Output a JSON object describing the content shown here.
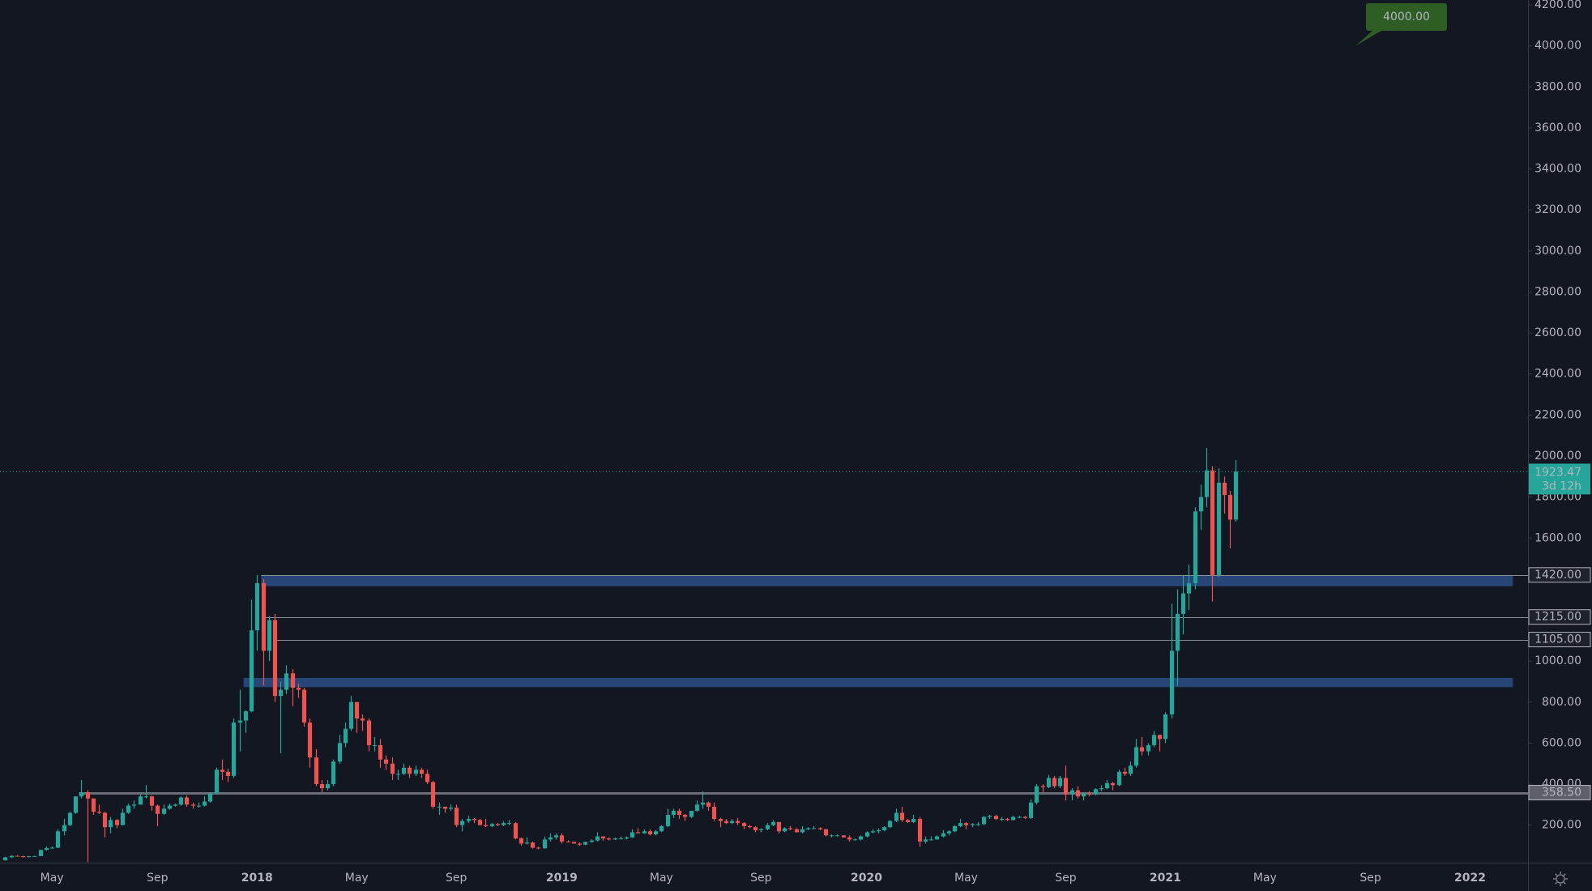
{
  "chart_data": {
    "type": "candlestick",
    "up_color": "#26a69a",
    "down_color": "#ef5350",
    "categories": [
      null,
      null,
      null,
      null,
      null,
      null,
      null,
      null,
      "May",
      null,
      null,
      null,
      null,
      null,
      null,
      null,
      null,
      null,
      null,
      null,
      null,
      null,
      null,
      null,
      null,
      null,
      "Sep",
      null,
      null,
      null,
      null,
      null,
      null,
      null,
      null,
      null,
      null,
      null,
      null,
      null,
      null,
      null,
      null,
      "2018",
      null,
      null,
      null,
      null,
      null,
      null,
      null,
      null,
      null,
      null,
      null,
      null,
      null,
      null,
      null,
      null,
      "May",
      null,
      null,
      null,
      null,
      null,
      null,
      null,
      null,
      null,
      null,
      null,
      null,
      null,
      null,
      null,
      null,
      "Sep",
      null,
      null,
      null,
      null,
      null,
      null,
      null,
      null,
      null,
      null,
      null,
      null,
      null,
      null,
      null,
      null,
      null,
      "2019",
      null,
      null,
      null,
      null,
      null,
      null,
      null,
      null,
      null,
      null,
      null,
      null,
      null,
      null,
      null,
      null,
      "May",
      null,
      null,
      null,
      null,
      null,
      null,
      null,
      null,
      null,
      null,
      null,
      null,
      null,
      null,
      null,
      null,
      "Sep",
      null,
      null,
      null,
      null,
      null,
      null,
      null,
      null,
      null,
      null,
      null,
      null,
      null,
      null,
      null,
      null,
      null,
      "2020",
      null,
      null,
      null,
      null,
      null,
      null,
      null,
      null,
      null,
      null,
      null,
      null,
      null,
      null,
      null,
      null,
      "May",
      null,
      null,
      null,
      null,
      null,
      null,
      null,
      null,
      null,
      null,
      null,
      null,
      null,
      null,
      null,
      null,
      "Sep",
      null,
      null,
      null,
      null,
      null,
      null,
      null,
      null,
      null,
      null,
      null,
      null,
      null,
      null,
      null,
      null,
      "2021",
      null,
      null,
      null,
      null,
      null,
      null,
      null,
      null,
      null,
      null,
      null,
      null,
      null,
      null,
      null,
      null,
      "May",
      null,
      null,
      null,
      null,
      null,
      null,
      null,
      null,
      null,
      null,
      null,
      null,
      null,
      null,
      null,
      null,
      null,
      "Sep",
      null,
      null,
      null,
      null,
      null,
      null,
      null,
      null,
      null,
      null,
      null,
      null,
      null,
      null,
      null,
      null,
      "2022",
      null,
      null,
      null,
      null,
      null,
      null,
      null,
      null,
      null,
      null
    ],
    "open": [
      28,
      43,
      50,
      48,
      44,
      48,
      49,
      79,
      88,
      90,
      170,
      200,
      260,
      340,
      360,
      330,
      265,
      260,
      190,
      225,
      200,
      260,
      295,
      300,
      340,
      340,
      295,
      255,
      280,
      295,
      300,
      335,
      300,
      295,
      295,
      315,
      355,
      470,
      460,
      440,
      700,
      710,
      755,
      1150,
      1380,
      1050,
      1200,
      830,
      860,
      940,
      870,
      860,
      700,
      530,
      400,
      380,
      400,
      510,
      600,
      670,
      800,
      720,
      710,
      590,
      590,
      520,
      500,
      450,
      450,
      480,
      450,
      470,
      450,
      410,
      290,
      290,
      280,
      285,
      200,
      220,
      230,
      225,
      200,
      195,
      205,
      200,
      210,
      210,
      135,
      110,
      115,
      90,
      87,
      130,
      140,
      150,
      120,
      118,
      110,
      105,
      118,
      125,
      145,
      135,
      130,
      135,
      135,
      140,
      165,
      160,
      170,
      155,
      170,
      195,
      250,
      270,
      250,
      240,
      270,
      300,
      310,
      290,
      230,
      220,
      210,
      220,
      210,
      195,
      190,
      175,
      180,
      200,
      215,
      170,
      185,
      180,
      165,
      180,
      185,
      185,
      180,
      150,
      150,
      150,
      140,
      130,
      130,
      145,
      165,
      170,
      175,
      190,
      220,
      260,
      225,
      215,
      230,
      120,
      130,
      130,
      145,
      160,
      170,
      195,
      210,
      200,
      205,
      205,
      240,
      245,
      230,
      230,
      225,
      240,
      240,
      235,
      310,
      390,
      385,
      430,
      390,
      430,
      350,
      370,
      340,
      355,
      350,
      375,
      380,
      405,
      395,
      460,
      450,
      490,
      580,
      560,
      590,
      640,
      620,
      740,
      1050,
      1230,
      1330,
      1380,
      1730,
      1800,
      1930,
      1420,
      1870,
      1810,
      1690,
      null,
      null,
      null,
      null,
      null,
      null,
      null,
      null,
      null,
      null,
      null,
      null,
      null,
      null,
      null,
      null,
      null,
      null,
      null,
      null,
      null,
      null,
      null,
      null,
      null,
      null,
      null,
      null,
      null,
      null,
      null,
      null,
      null,
      null,
      null,
      null,
      null,
      null,
      null,
      null,
      null,
      null,
      null,
      null,
      null,
      null,
      null,
      null,
      null,
      null
    ],
    "high": [
      45,
      53,
      53,
      51,
      50,
      50,
      80,
      97,
      96,
      180,
      230,
      265,
      340,
      420,
      370,
      330,
      300,
      265,
      240,
      230,
      280,
      305,
      320,
      350,
      395,
      345,
      300,
      300,
      305,
      305,
      340,
      345,
      310,
      310,
      340,
      360,
      480,
      520,
      475,
      720,
      860,
      760,
      1300,
      1420,
      1400,
      1220,
      1230,
      900,
      980,
      960,
      890,
      870,
      720,
      570,
      420,
      420,
      520,
      640,
      700,
      830,
      800,
      740,
      720,
      630,
      620,
      540,
      530,
      470,
      500,
      490,
      490,
      480,
      470,
      415,
      310,
      290,
      300,
      300,
      230,
      245,
      235,
      230,
      230,
      210,
      210,
      220,
      225,
      215,
      140,
      140,
      120,
      95,
      145,
      160,
      160,
      160,
      125,
      120,
      115,
      120,
      130,
      165,
      145,
      140,
      140,
      145,
      145,
      180,
      185,
      180,
      180,
      175,
      200,
      280,
      280,
      280,
      255,
      270,
      320,
      365,
      315,
      310,
      235,
      230,
      230,
      235,
      215,
      200,
      195,
      185,
      210,
      225,
      215,
      190,
      195,
      185,
      195,
      190,
      195,
      190,
      182,
      155,
      155,
      150,
      150,
      135,
      150,
      170,
      180,
      185,
      195,
      225,
      280,
      290,
      230,
      250,
      240,
      145,
      145,
      150,
      175,
      175,
      200,
      230,
      215,
      210,
      215,
      245,
      250,
      250,
      240,
      235,
      245,
      245,
      245,
      325,
      400,
      400,
      445,
      440,
      440,
      490,
      380,
      390,
      360,
      365,
      380,
      395,
      420,
      410,
      470,
      480,
      510,
      620,
      630,
      600,
      660,
      640,
      750,
      1280,
      1350,
      1420,
      1470,
      1750,
      1860,
      2040,
      1950,
      1940,
      1900,
      1830,
      1980,
      null,
      null,
      null,
      null,
      null,
      null,
      null,
      null,
      null,
      null,
      null,
      null,
      null,
      null,
      null,
      null,
      null,
      null,
      null,
      null,
      null,
      null,
      null,
      null,
      null,
      null,
      null,
      null,
      null,
      null,
      null,
      null,
      null,
      null,
      null,
      null,
      null,
      null,
      null,
      null,
      null,
      null,
      null,
      null,
      null,
      null,
      null,
      null,
      null,
      null
    ],
    "low": [
      27,
      40,
      47,
      42,
      43,
      47,
      49,
      76,
      85,
      88,
      150,
      195,
      255,
      330,
      20,
      250,
      255,
      140,
      160,
      185,
      200,
      255,
      280,
      300,
      330,
      270,
      195,
      250,
      275,
      290,
      295,
      290,
      280,
      285,
      290,
      310,
      350,
      420,
      410,
      430,
      560,
      650,
      750,
      1050,
      880,
      1000,
      800,
      550,
      840,
      780,
      820,
      680,
      480,
      390,
      360,
      370,
      390,
      500,
      580,
      660,
      650,
      660,
      560,
      560,
      480,
      470,
      420,
      420,
      445,
      430,
      440,
      430,
      400,
      280,
      250,
      260,
      270,
      190,
      170,
      210,
      210,
      200,
      190,
      190,
      195,
      195,
      200,
      130,
      100,
      105,
      85,
      82,
      85,
      120,
      130,
      110,
      115,
      110,
      100,
      102,
      115,
      120,
      125,
      125,
      128,
      130,
      130,
      138,
      160,
      158,
      150,
      150,
      165,
      190,
      235,
      230,
      220,
      235,
      265,
      280,
      270,
      220,
      190,
      205,
      205,
      200,
      180,
      185,
      165,
      165,
      175,
      195,
      160,
      165,
      175,
      165,
      160,
      175,
      180,
      175,
      145,
      140,
      145,
      140,
      120,
      125,
      125,
      140,
      160,
      160,
      170,
      185,
      215,
      215,
      210,
      210,
      95,
      110,
      125,
      130,
      140,
      150,
      165,
      190,
      180,
      190,
      195,
      200,
      230,
      225,
      220,
      220,
      222,
      235,
      230,
      230,
      300,
      360,
      380,
      380,
      380,
      320,
      320,
      330,
      320,
      340,
      345,
      365,
      375,
      370,
      390,
      440,
      440,
      480,
      540,
      540,
      580,
      560,
      600,
      720,
      880,
      1130,
      1250,
      1350,
      1640,
      1750,
      1290,
      1410,
      1720,
      1550,
      1680,
      null,
      null,
      null,
      null,
      null,
      null,
      null,
      null,
      null,
      null,
      null,
      null,
      null,
      null,
      null,
      null,
      null,
      null,
      null,
      null,
      null,
      null,
      null,
      null,
      null,
      null,
      null,
      null,
      null,
      null,
      null,
      null,
      null,
      null,
      null,
      null,
      null,
      null,
      null,
      null,
      null,
      null,
      null,
      null,
      null,
      null,
      null,
      null,
      null,
      null
    ],
    "close": [
      43,
      50,
      48,
      44,
      48,
      49,
      79,
      88,
      90,
      170,
      200,
      260,
      340,
      360,
      330,
      265,
      260,
      190,
      225,
      200,
      260,
      295,
      300,
      340,
      340,
      295,
      255,
      280,
      295,
      300,
      335,
      300,
      295,
      295,
      315,
      355,
      470,
      460,
      440,
      700,
      710,
      755,
      1150,
      1380,
      1050,
      1200,
      830,
      860,
      940,
      870,
      860,
      700,
      530,
      400,
      380,
      400,
      510,
      600,
      670,
      800,
      720,
      710,
      590,
      590,
      520,
      500,
      450,
      450,
      480,
      450,
      470,
      450,
      410,
      290,
      290,
      280,
      285,
      200,
      220,
      230,
      225,
      200,
      195,
      205,
      200,
      210,
      210,
      135,
      110,
      115,
      90,
      87,
      130,
      140,
      150,
      120,
      118,
      110,
      105,
      118,
      125,
      145,
      135,
      130,
      135,
      135,
      140,
      165,
      160,
      170,
      155,
      170,
      195,
      250,
      270,
      250,
      240,
      270,
      300,
      310,
      290,
      230,
      220,
      210,
      220,
      210,
      195,
      190,
      175,
      180,
      200,
      215,
      170,
      185,
      180,
      165,
      180,
      185,
      185,
      180,
      150,
      150,
      150,
      140,
      130,
      130,
      145,
      165,
      170,
      175,
      190,
      220,
      260,
      225,
      215,
      230,
      120,
      130,
      130,
      145,
      160,
      170,
      195,
      210,
      200,
      205,
      205,
      240,
      245,
      230,
      230,
      225,
      240,
      240,
      235,
      310,
      390,
      385,
      430,
      390,
      430,
      350,
      370,
      340,
      355,
      350,
      375,
      380,
      405,
      395,
      460,
      450,
      490,
      580,
      560,
      590,
      640,
      620,
      740,
      1050,
      1230,
      1330,
      1380,
      1730,
      1800,
      1930,
      1420,
      1870,
      1810,
      1690,
      1923.47,
      null,
      null,
      null,
      null,
      null,
      null,
      null,
      null,
      null,
      null,
      null,
      null,
      null,
      null,
      null,
      null,
      null,
      null,
      null,
      null,
      null,
      null,
      null,
      null,
      null,
      null,
      null,
      null,
      null,
      null,
      null,
      null,
      null,
      null,
      null,
      null,
      null,
      null,
      null,
      null,
      null,
      null,
      null,
      null,
      null,
      null,
      null,
      null,
      null,
      null
    ],
    "ylim": [
      17,
      4224
    ],
    "yticks": [
      {
        "value": 200,
        "label": "200.00"
      },
      {
        "value": 400,
        "label": "400.00"
      },
      {
        "value": 600,
        "label": "600.00"
      },
      {
        "value": 800,
        "label": "800.00"
      },
      {
        "value": 1000,
        "label": "1000.00"
      },
      {
        "value": 1600,
        "label": "1600.00"
      },
      {
        "value": 1800,
        "label": "1800.00"
      },
      {
        "value": 2000,
        "label": "2000.00"
      },
      {
        "value": 2200,
        "label": "2200.00"
      },
      {
        "value": 2400,
        "label": "2400.00"
      },
      {
        "value": 2600,
        "label": "2600.00"
      },
      {
        "value": 2800,
        "label": "2800.00"
      },
      {
        "value": 3000,
        "label": "3000.00"
      },
      {
        "value": 3200,
        "label": "3200.00"
      },
      {
        "value": 3400,
        "label": "3400.00"
      },
      {
        "value": 3600,
        "label": "3600.00"
      },
      {
        "value": 3800,
        "label": "3800.00"
      },
      {
        "value": 4000,
        "label": "4000.00"
      },
      {
        "value": 4200,
        "label": "4200.00"
      }
    ],
    "grid": false,
    "zones": [
      {
        "low": 1365,
        "high": 1420,
        "color": "#2a4a7f"
      },
      {
        "low": 873,
        "high": 918,
        "color": "#2a4a7f"
      }
    ],
    "levels": [
      {
        "value": 1420,
        "label": "1420.00"
      },
      {
        "value": 1215,
        "label": "1215.00"
      },
      {
        "value": 1105,
        "label": "1105.00"
      },
      {
        "value": 358.5,
        "label": "358.50"
      }
    ],
    "countdown": "3d 12h",
    "annotation": {
      "value": 4000,
      "label": "4000.00",
      "color": "#2f5e24"
    }
  }
}
